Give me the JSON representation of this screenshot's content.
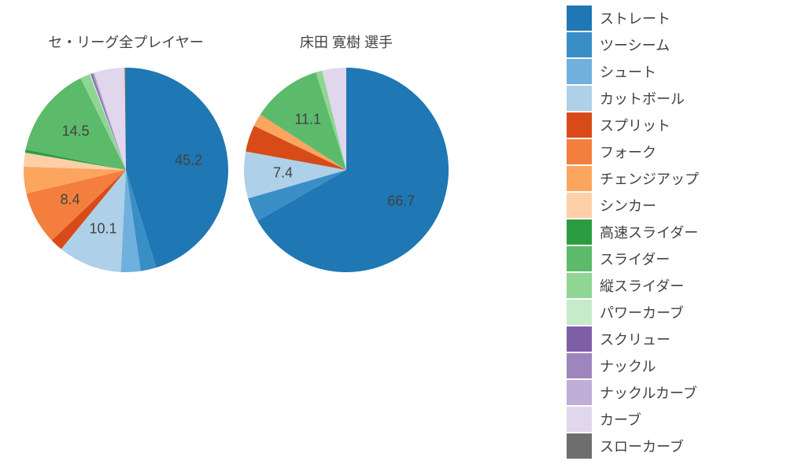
{
  "legend": {
    "items": [
      {
        "label": "ストレート",
        "color": "#1f77b4"
      },
      {
        "label": "ツーシーム",
        "color": "#3a8ec6"
      },
      {
        "label": "シュート",
        "color": "#6fb0dd"
      },
      {
        "label": "カットボール",
        "color": "#aed0e8"
      },
      {
        "label": "スプリット",
        "color": "#d84b19"
      },
      {
        "label": "フォーク",
        "color": "#f37e3d"
      },
      {
        "label": "チェンジアップ",
        "color": "#fba55f"
      },
      {
        "label": "シンカー",
        "color": "#ffcfa7"
      },
      {
        "label": "高速スライダー",
        "color": "#2b9c41"
      },
      {
        "label": "スライダー",
        "color": "#5cba6b"
      },
      {
        "label": "縦スライダー",
        "color": "#8fd594"
      },
      {
        "label": "パワーカーブ",
        "color": "#c5ebc8"
      },
      {
        "label": "スクリュー",
        "color": "#7f5ea8"
      },
      {
        "label": "ナックル",
        "color": "#9f85be"
      },
      {
        "label": "ナックルカーブ",
        "color": "#c0aed6"
      },
      {
        "label": "カーブ",
        "color": "#e0d7ec"
      },
      {
        "label": "スローカーブ",
        "color": "#6e6e6e"
      }
    ]
  },
  "charts": [
    {
      "title": "セ・リーグ全プレイヤー",
      "radius": 130,
      "slices": [
        {
          "value": 45.2,
          "color": "#1f77b4",
          "showLabel": true
        },
        {
          "value": 2.5,
          "color": "#3a8ec6",
          "showLabel": false
        },
        {
          "value": 3.1,
          "color": "#6fb0dd",
          "showLabel": false
        },
        {
          "value": 10.1,
          "color": "#aed0e8",
          "showLabel": true
        },
        {
          "value": 2.0,
          "color": "#d84b19",
          "showLabel": false
        },
        {
          "value": 8.4,
          "color": "#f37e3d",
          "showLabel": true
        },
        {
          "value": 4.2,
          "color": "#fba55f",
          "showLabel": false
        },
        {
          "value": 2.2,
          "color": "#ffcfa7",
          "showLabel": false
        },
        {
          "value": 0.5,
          "color": "#2b9c41",
          "showLabel": false
        },
        {
          "value": 14.5,
          "color": "#5cba6b",
          "showLabel": true
        },
        {
          "value": 1.5,
          "color": "#8fd594",
          "showLabel": false
        },
        {
          "value": 0.2,
          "color": "#c5ebc8",
          "showLabel": false
        },
        {
          "value": 0.2,
          "color": "#7f5ea8",
          "showLabel": false
        },
        {
          "value": 0.2,
          "color": "#9f85be",
          "showLabel": false
        },
        {
          "value": 0.2,
          "color": "#c0aed6",
          "showLabel": false
        },
        {
          "value": 4.8,
          "color": "#e0d7ec",
          "showLabel": false
        },
        {
          "value": 0.2,
          "color": "#6e6e6e",
          "showLabel": false
        }
      ]
    },
    {
      "title": "床田 寛樹  選手",
      "radius": 130,
      "slices": [
        {
          "value": 66.7,
          "color": "#1f77b4",
          "showLabel": true
        },
        {
          "value": 3.8,
          "color": "#3a8ec6",
          "showLabel": false
        },
        {
          "value": 7.4,
          "color": "#aed0e8",
          "showLabel": true
        },
        {
          "value": 4.2,
          "color": "#d84b19",
          "showLabel": false
        },
        {
          "value": 2.0,
          "color": "#fba55f",
          "showLabel": false
        },
        {
          "value": 11.1,
          "color": "#5cba6b",
          "showLabel": true
        },
        {
          "value": 1.0,
          "color": "#8fd594",
          "showLabel": false
        },
        {
          "value": 3.8,
          "color": "#e0d7ec",
          "showLabel": false
        }
      ]
    }
  ],
  "style": {
    "background": "#ffffff",
    "titleFontSize": 18,
    "labelFontSize": 18,
    "labelOffsetFactor": 0.62
  }
}
